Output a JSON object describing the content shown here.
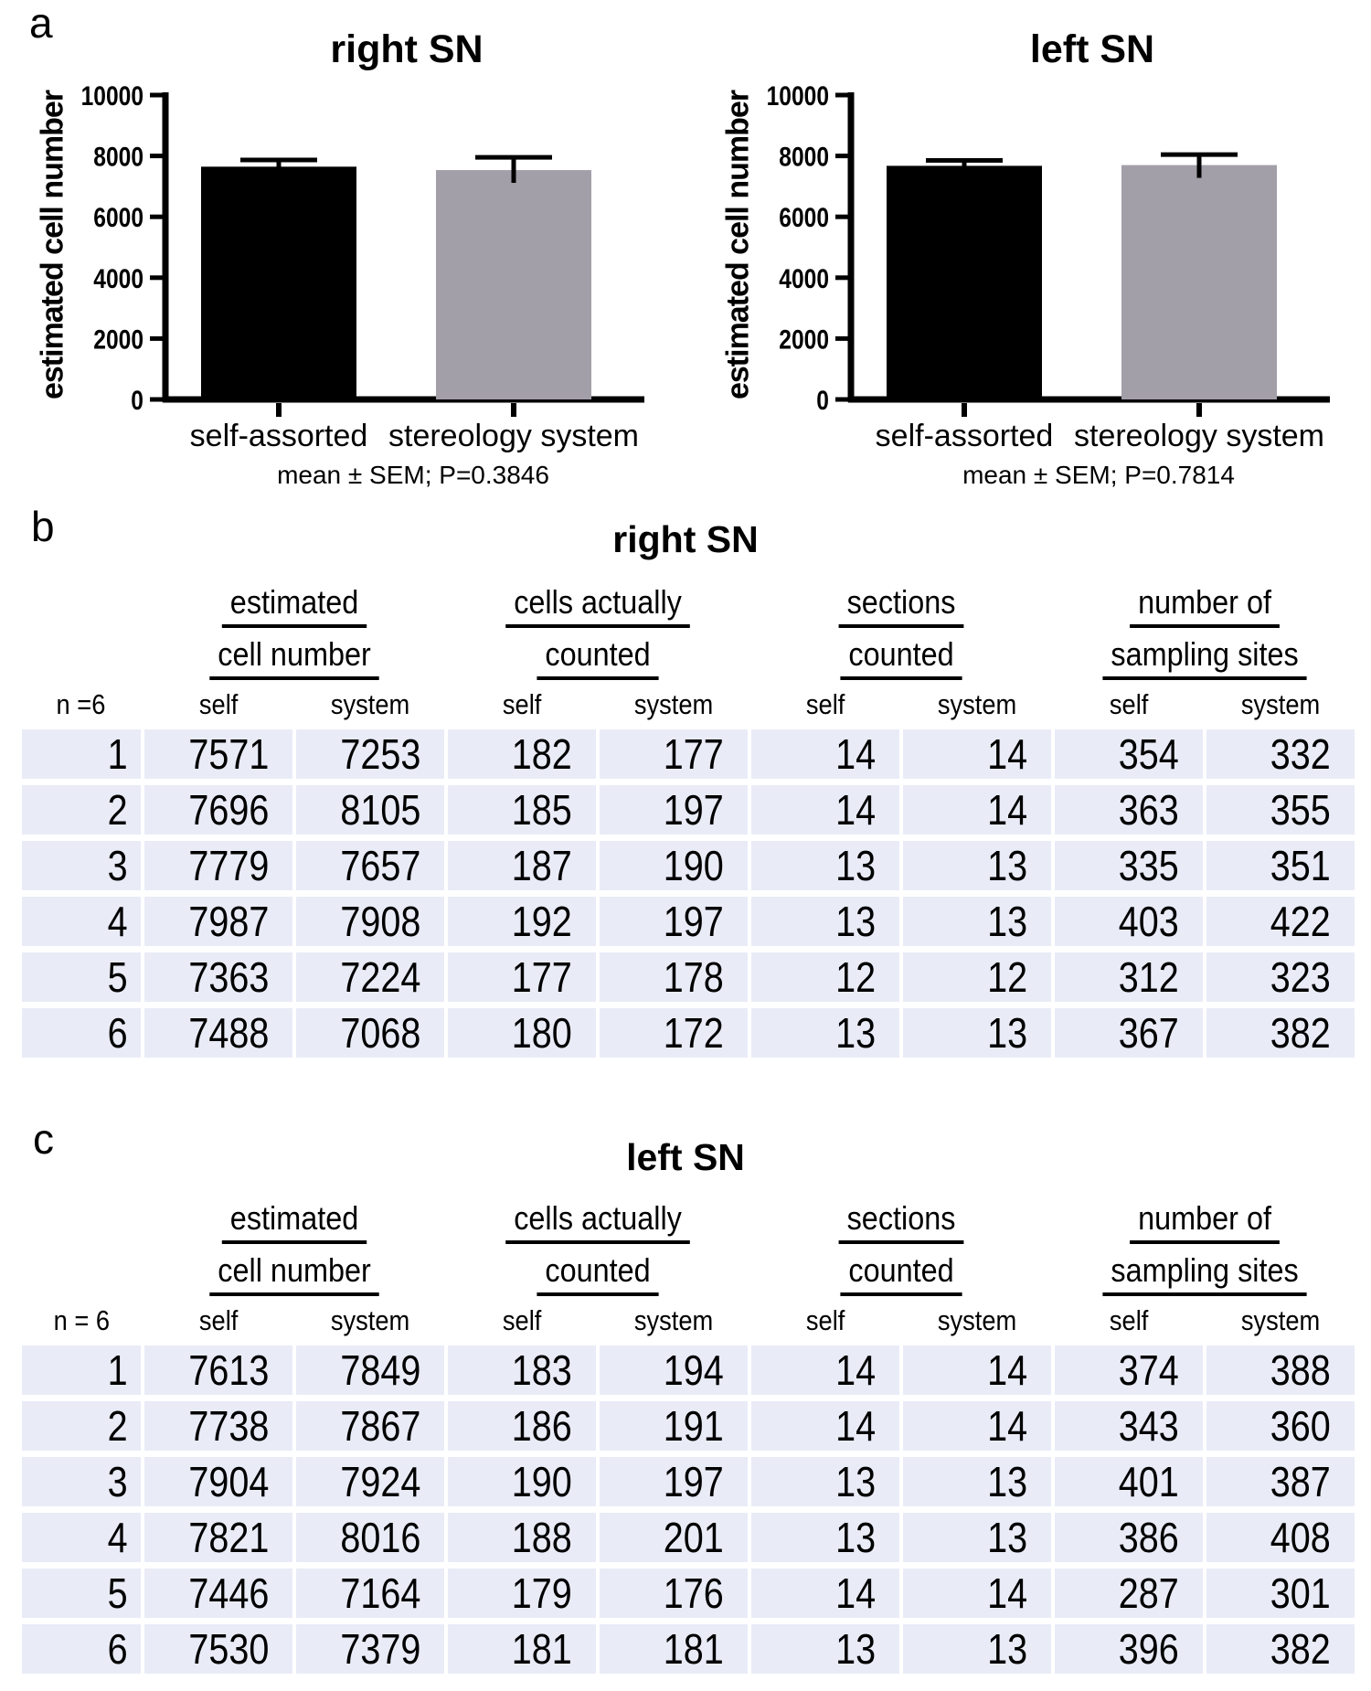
{
  "panels": {
    "a": "a"
  },
  "chart_data": [
    {
      "type": "bar",
      "title": "right SN",
      "ylabel": "estimated cell number",
      "xlabel": "",
      "categories": [
        "self-assorted",
        "stereology system"
      ],
      "values": [
        7647,
        7536
      ],
      "errors_upper": [
        222,
        418
      ],
      "bar_colors": [
        "#000000",
        "#a39fa8"
      ],
      "ylim": [
        0,
        10000
      ],
      "yticks": [
        0,
        2000,
        4000,
        6000,
        8000,
        10000
      ],
      "grid": "off",
      "legend": "none",
      "note": "mean ± SEM; P=0.3846"
    },
    {
      "type": "bar",
      "title": "left SN",
      "ylabel": "estimated cell number",
      "xlabel": "",
      "categories": [
        "self-assorted",
        "stereology system"
      ],
      "values": [
        7675,
        7700
      ],
      "errors_upper": [
        176,
        344
      ],
      "bar_colors": [
        "#000000",
        "#a39fa8"
      ],
      "ylim": [
        0,
        10000
      ],
      "yticks": [
        0,
        2000,
        4000,
        6000,
        8000,
        10000
      ],
      "grid": "off",
      "legend": "none",
      "note": "mean ± SEM; P=0.7814"
    }
  ],
  "tables": [
    {
      "panel_label": "b",
      "title": "right SN",
      "n_label": "n =6",
      "groups": [
        [
          "estimated",
          "cell number"
        ],
        [
          "cells actually",
          "counted"
        ],
        [
          "sections",
          "counted"
        ],
        [
          "number of",
          "sampling sites"
        ]
      ],
      "subheaders": [
        "self",
        "system",
        "self",
        "system",
        "self",
        "system",
        "self",
        "system"
      ],
      "rows": [
        [
          "1",
          "7571",
          "7253",
          "182",
          "177",
          "14",
          "14",
          "354",
          "332"
        ],
        [
          "2",
          "7696",
          "8105",
          "185",
          "197",
          "14",
          "14",
          "363",
          "355"
        ],
        [
          "3",
          "7779",
          "7657",
          "187",
          "190",
          "13",
          "13",
          "335",
          "351"
        ],
        [
          "4",
          "7987",
          "7908",
          "192",
          "197",
          "13",
          "13",
          "403",
          "422"
        ],
        [
          "5",
          "7363",
          "7224",
          "177",
          "178",
          "12",
          "12",
          "312",
          "323"
        ],
        [
          "6",
          "7488",
          "7068",
          "180",
          "172",
          "13",
          "13",
          "367",
          "382"
        ]
      ]
    },
    {
      "panel_label": "c",
      "title": "left SN",
      "n_label": "n = 6",
      "groups": [
        [
          "estimated",
          "cell number"
        ],
        [
          "cells actually",
          "counted"
        ],
        [
          "sections",
          "counted"
        ],
        [
          "number of",
          "sampling sites"
        ]
      ],
      "subheaders": [
        "self",
        "system",
        "self",
        "system",
        "self",
        "system",
        "self",
        "system"
      ],
      "rows": [
        [
          "1",
          "7613",
          "7849",
          "183",
          "194",
          "14",
          "14",
          "374",
          "388"
        ],
        [
          "2",
          "7738",
          "7867",
          "186",
          "191",
          "14",
          "14",
          "343",
          "360"
        ],
        [
          "3",
          "7904",
          "7924",
          "190",
          "197",
          "13",
          "13",
          "401",
          "387"
        ],
        [
          "4",
          "7821",
          "8016",
          "188",
          "201",
          "13",
          "13",
          "386",
          "408"
        ],
        [
          "5",
          "7446",
          "7164",
          "179",
          "176",
          "14",
          "14",
          "287",
          "301"
        ],
        [
          "6",
          "7530",
          "7379",
          "181",
          "181",
          "13",
          "13",
          "396",
          "382"
        ]
      ]
    }
  ],
  "style": {
    "cell_background": "#e9ecf7",
    "bar_black": "#000000",
    "bar_gray": "#a39fa8"
  }
}
